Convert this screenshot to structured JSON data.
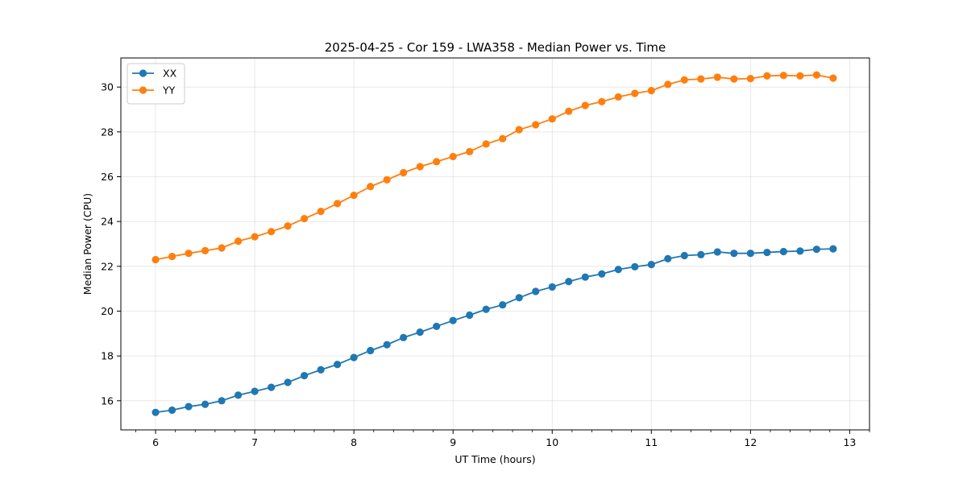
{
  "chart_data": {
    "type": "line",
    "title": "2025-04-25 - Cor 159 - LWA358 - Median Power vs. Time",
    "xlabel": "UT Time (hours)",
    "ylabel": "Median Power (CPU)",
    "xlim": [
      5.65,
      13.2
    ],
    "ylim": [
      14.7,
      31.3
    ],
    "xticks": [
      6,
      7,
      8,
      9,
      10,
      11,
      12,
      13
    ],
    "yticks": [
      16,
      18,
      20,
      22,
      24,
      26,
      28,
      30
    ],
    "x_minor_step": 0.2,
    "grid": true,
    "legend_loc": "upper left",
    "x": [
      6.0,
      6.1667,
      6.3333,
      6.5,
      6.6667,
      6.8333,
      7.0,
      7.1667,
      7.3333,
      7.5,
      7.6667,
      7.8333,
      8.0,
      8.1667,
      8.3333,
      8.5,
      8.6667,
      8.8333,
      9.0,
      9.1667,
      9.3333,
      9.5,
      9.6667,
      9.8333,
      10.0,
      10.1667,
      10.3333,
      10.5,
      10.6667,
      10.8333,
      11.0,
      11.1667,
      11.3333,
      11.5,
      11.6667,
      11.8333,
      12.0,
      12.1667,
      12.3333,
      12.5,
      12.6667,
      12.8333
    ],
    "series": [
      {
        "name": "XX",
        "color": "#1f77b4",
        "values": [
          15.48,
          15.58,
          15.74,
          15.84,
          16.0,
          16.25,
          16.42,
          16.6,
          16.82,
          17.12,
          17.38,
          17.62,
          17.93,
          18.24,
          18.5,
          18.82,
          19.06,
          19.32,
          19.58,
          19.82,
          20.08,
          20.28,
          20.6,
          20.88,
          21.08,
          21.32,
          21.52,
          21.66,
          21.86,
          21.98,
          22.08,
          22.34,
          22.48,
          22.52,
          22.64,
          22.58,
          22.58,
          22.62,
          22.66,
          22.68,
          22.76,
          22.78
        ]
      },
      {
        "name": "YY",
        "color": "#ff7f0e",
        "values": [
          22.3,
          22.44,
          22.58,
          22.7,
          22.82,
          23.12,
          23.32,
          23.55,
          23.8,
          24.13,
          24.45,
          24.8,
          25.17,
          25.56,
          25.86,
          26.18,
          26.45,
          26.67,
          26.9,
          27.12,
          27.46,
          27.7,
          28.1,
          28.32,
          28.58,
          28.92,
          29.18,
          29.35,
          29.56,
          29.72,
          29.84,
          30.12,
          30.32,
          30.36,
          30.44,
          30.36,
          30.38,
          30.5,
          30.52,
          30.5,
          30.54,
          30.4
        ]
      }
    ]
  }
}
